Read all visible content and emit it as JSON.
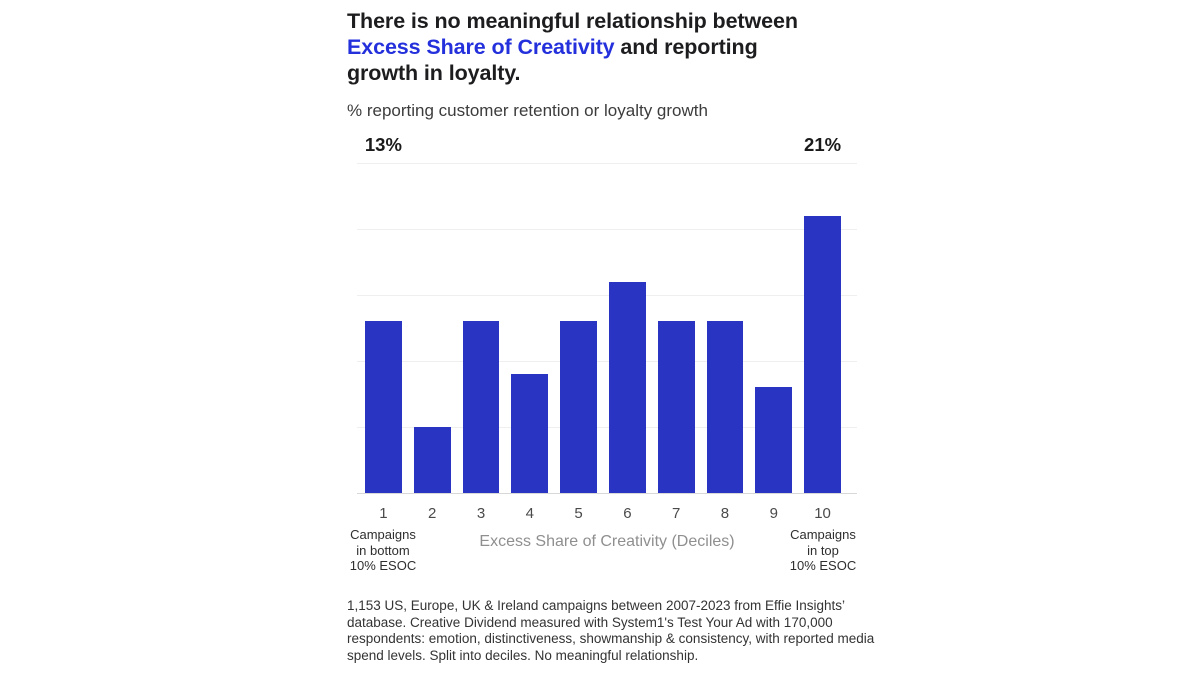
{
  "header": {
    "title_part1": "There is no meaningful relationship between ",
    "title_highlight": "Excess Share of Creativity",
    "title_part2": " and reporting growth in loyalty.",
    "subtitle": "% reporting customer retention or loyalty growth"
  },
  "chart_data": {
    "type": "bar",
    "categories": [
      "1",
      "2",
      "3",
      "4",
      "5",
      "6",
      "7",
      "8",
      "9",
      "10"
    ],
    "values": [
      13,
      5,
      13,
      9,
      13,
      16,
      13,
      13,
      8,
      21
    ],
    "bar_labels": [
      "13%",
      "",
      "",
      "",
      "",
      "",
      "",
      "",
      "",
      "21%"
    ],
    "title": "There is no meaningful relationship between Excess Share of Creativity and reporting growth in loyalty.",
    "subtitle": "% reporting customer retention or loyalty growth",
    "xlabel": "Excess Share of Creativity (Deciles)",
    "ylabel": "% reporting customer retention or loyalty growth",
    "ylim": [
      0,
      25
    ],
    "gridlines": [
      5,
      10,
      15,
      20,
      25
    ],
    "grid": "horizontal-light",
    "legend": "none",
    "bar_color": "#2A34C2"
  },
  "annotations": {
    "left_lines": [
      "Campaigns",
      "in bottom",
      "10% ESOC"
    ],
    "right_lines": [
      "Campaigns",
      "in top",
      "10% ESOC"
    ]
  },
  "footnote": "1,153 US, Europe, UK & Ireland campaigns between 2007-2023 from Effie Insights’ database. Creative Dividend measured with System1's Test Your Ad with 170,000 respondents: emotion, distinctiveness, showmanship & consistency, with reported media spend levels. Split into deciles. No meaningful relationship.",
  "colors": {
    "accent_blue": "#2330DC",
    "bar_blue": "#2A34C2",
    "title_text": "#1d1d1f",
    "gridline": "#efefef",
    "axis_line": "#d8d8d8",
    "axis_label_gray": "#8f8f8f"
  }
}
